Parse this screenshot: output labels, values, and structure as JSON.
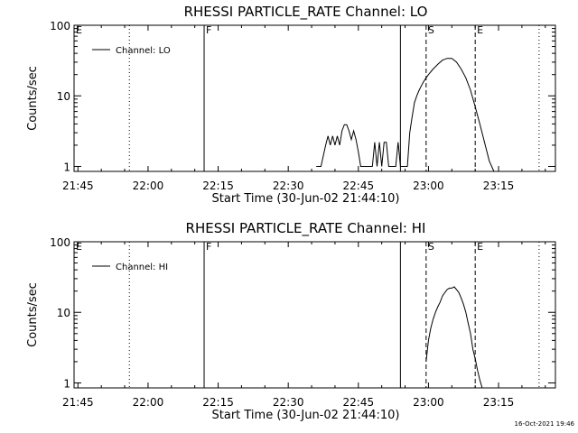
{
  "footer": {
    "timestamp": "16-Oct-2021 19:46"
  },
  "chart_data": [
    {
      "type": "line",
      "title": "RHESSI PARTICLE_RATE Channel: LO",
      "xlabel": "Start Time (30-Jun-02 21:44:10)",
      "ylabel": "Counts/sec",
      "y_scale": "log",
      "ylim": [
        0.85,
        100
      ],
      "xlim": [
        "21:44:10",
        "23:27:10"
      ],
      "x_ticks": [
        "21:45",
        "22:00",
        "22:15",
        "22:30",
        "22:45",
        "23:00",
        "23:15"
      ],
      "y_ticks": [
        "1",
        "10",
        "100"
      ],
      "legend": {
        "position": "top-left",
        "entries": [
          "Channel: LO"
        ]
      },
      "series": [
        {
          "name": "Channel: LO",
          "x": [
            "22:36:00",
            "22:37:00",
            "22:38:00",
            "22:38:30",
            "22:39:00",
            "22:39:30",
            "22:40:00",
            "22:40:30",
            "22:41:00",
            "22:41:30",
            "22:42:00",
            "22:42:30",
            "22:43:00",
            "22:43:30",
            "22:44:00",
            "22:44:30",
            "22:45:00",
            "22:45:30",
            "22:46:00",
            "22:46:30",
            "22:47:00",
            "22:47:30",
            "22:48:00",
            "22:48:30",
            "22:49:00",
            "22:49:30",
            "22:50:00",
            "22:50:30",
            "22:51:00",
            "22:51:30",
            "22:52:00",
            "22:52:30",
            "22:53:00",
            "22:53:30",
            "22:54:00",
            "22:54:30",
            "22:55:00",
            "22:55:30",
            "22:56:00",
            "22:56:30",
            "22:57:00",
            "22:57:30",
            "22:58:00",
            "22:58:30",
            "22:59:00",
            "22:59:30",
            "23:00:00",
            "23:01:00",
            "23:02:00",
            "23:03:00",
            "23:04:00",
            "23:05:00",
            "23:06:00",
            "23:07:00",
            "23:08:00",
            "23:09:00",
            "23:10:00",
            "23:11:00",
            "23:12:00",
            "23:13:00",
            "23:14:00"
          ],
          "y": [
            1,
            1,
            2,
            2.7,
            2,
            2.7,
            2,
            2.7,
            2,
            3.2,
            3.9,
            3.9,
            3.2,
            2.4,
            3.2,
            2.4,
            1.6,
            1,
            1,
            1,
            1,
            1,
            1,
            2.2,
            1,
            2.2,
            1,
            2.2,
            2.2,
            1,
            1,
            1,
            1,
            2.2,
            1,
            1,
            1,
            1,
            3,
            5,
            8,
            10,
            12,
            14,
            16,
            18,
            20,
            24,
            28,
            32,
            34,
            34,
            30,
            24,
            18,
            12,
            7,
            4,
            2.2,
            1.2,
            0.85
          ]
        }
      ],
      "markers": [
        {
          "label": "E",
          "time": "21:44:10",
          "style": "dotted"
        },
        {
          "label": "",
          "time": "21:56:00",
          "style": "dotted"
        },
        {
          "label": "F",
          "time": "22:12:00",
          "style": "solid"
        },
        {
          "label": "",
          "time": "22:54:00",
          "style": "solid"
        },
        {
          "label": "S",
          "time": "22:59:30",
          "style": "dashed"
        },
        {
          "label": "E",
          "time": "23:10:00",
          "style": "dashed"
        },
        {
          "label": "",
          "time": "23:23:40",
          "style": "dotted"
        }
      ]
    },
    {
      "type": "line",
      "title": "RHESSI PARTICLE_RATE Channel: HI",
      "xlabel": "Start Time (30-Jun-02 21:44:10)",
      "ylabel": "Counts/sec",
      "y_scale": "log",
      "ylim": [
        0.85,
        100
      ],
      "xlim": [
        "21:44:10",
        "23:27:10"
      ],
      "x_ticks": [
        "21:45",
        "22:00",
        "22:15",
        "22:30",
        "22:45",
        "23:00",
        "23:15"
      ],
      "y_ticks": [
        "1",
        "10",
        "100"
      ],
      "legend": {
        "position": "top-left",
        "entries": [
          "Channel: HI"
        ]
      },
      "series": [
        {
          "name": "Channel: HI",
          "x": [
            "22:59:30",
            "23:00:00",
            "23:00:30",
            "23:01:00",
            "23:01:30",
            "23:02:00",
            "23:02:30",
            "23:03:00",
            "23:03:30",
            "23:04:00",
            "23:04:30",
            "23:05:00",
            "23:05:30",
            "23:06:00",
            "23:06:30",
            "23:07:00",
            "23:07:30",
            "23:08:00",
            "23:08:30",
            "23:09:00",
            "23:09:30",
            "23:10:00",
            "23:10:30",
            "23:11:00",
            "23:11:30"
          ],
          "y": [
            2,
            4,
            6,
            8,
            10,
            12,
            14,
            17,
            19,
            21,
            22,
            22,
            23,
            21,
            19,
            16,
            13,
            10,
            7,
            5,
            3,
            2.2,
            1.5,
            1.1,
            0.85
          ]
        }
      ],
      "markers": [
        {
          "label": "E",
          "time": "21:44:10",
          "style": "dotted"
        },
        {
          "label": "",
          "time": "21:56:00",
          "style": "dotted"
        },
        {
          "label": "F",
          "time": "22:12:00",
          "style": "solid"
        },
        {
          "label": "",
          "time": "22:54:00",
          "style": "solid"
        },
        {
          "label": "S",
          "time": "22:59:30",
          "style": "dashed"
        },
        {
          "label": "E",
          "time": "23:10:00",
          "style": "dashed"
        },
        {
          "label": "",
          "time": "23:23:40",
          "style": "dotted"
        }
      ]
    }
  ]
}
